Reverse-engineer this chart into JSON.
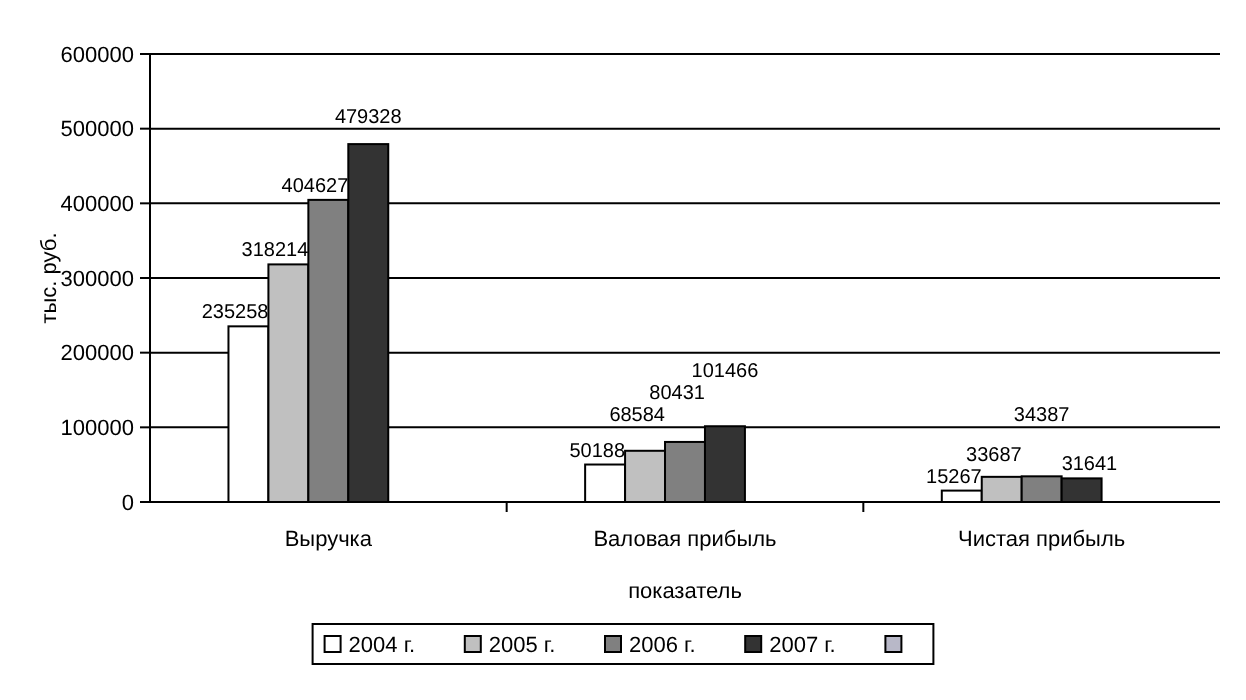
{
  "chart_data": {
    "type": "bar",
    "xlabel": "показатель",
    "ylabel": "тыс. руб.",
    "categories": [
      "Выручка",
      "Валовая прибыль",
      "Чистая прибыль"
    ],
    "series": [
      {
        "name": "2004 г.",
        "color": "#ffffff",
        "values": [
          235258,
          50188,
          15267
        ]
      },
      {
        "name": "2005 г.",
        "color": "#c0c0c0",
        "values": [
          318214,
          68584,
          33687
        ]
      },
      {
        "name": "2006 г.",
        "color": "#808080",
        "values": [
          404627,
          80431,
          34387
        ]
      },
      {
        "name": "2007 г.",
        "color": "#333333",
        "values": [
          479328,
          101466,
          31641
        ]
      },
      {
        "color": "#b8b8c8",
        "values": [
          null,
          null,
          null
        ]
      }
    ],
    "ylim": [
      0,
      600000
    ],
    "yticks": [
      0,
      100000,
      200000,
      300000,
      400000,
      500000,
      600000
    ],
    "grid": "y",
    "legend": "bottom",
    "data_labels": true
  }
}
